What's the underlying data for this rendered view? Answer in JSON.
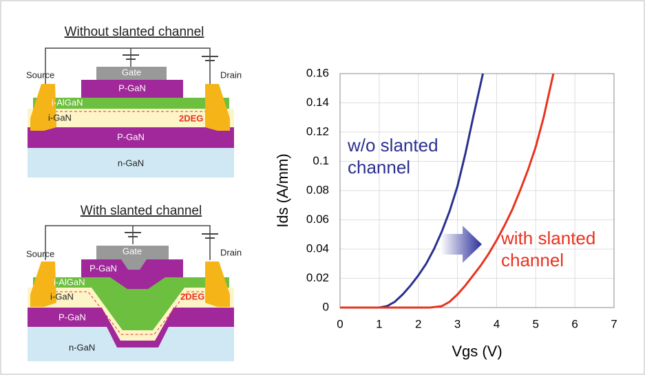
{
  "diagrams": [
    {
      "title": "Without slanted channel",
      "layers": [
        "Source",
        "Gate",
        "Drain",
        "P-GaN",
        "i-AlGaN",
        "i-GaN",
        "2DEG",
        "P-GaN",
        "n-GaN"
      ]
    },
    {
      "title": "With slanted channel",
      "layers": [
        "Source",
        "Gate",
        "Drain",
        "P-GaN",
        "i-AlGaN",
        "i-GaN",
        "2DEG",
        "P-GaN",
        "n-GaN"
      ]
    }
  ],
  "chart_data": {
    "type": "line",
    "x_label": "Vgs (V)",
    "y_label": "Ids (A/mm)",
    "xlim": [
      0,
      7
    ],
    "ylim": [
      0,
      0.16
    ],
    "xticks": [
      0,
      1,
      2,
      3,
      4,
      5,
      6,
      7
    ],
    "yticks": [
      0,
      0.02,
      0.04,
      0.06,
      0.08,
      0.1,
      0.12,
      0.14,
      0.16
    ],
    "grid": true,
    "series": [
      {
        "name": "w/o slanted channel",
        "color": "#2b2f8f",
        "x": [
          0,
          0.5,
          1.0,
          1.2,
          1.4,
          1.6,
          1.8,
          2.0,
          2.2,
          2.4,
          2.6,
          2.8,
          3.0,
          3.2,
          3.4,
          3.65
        ],
        "values": [
          0,
          0,
          0,
          0.001,
          0.004,
          0.009,
          0.015,
          0.022,
          0.03,
          0.04,
          0.052,
          0.066,
          0.083,
          0.105,
          0.13,
          0.16
        ]
      },
      {
        "name": "with slanted channel",
        "color": "#e8321e",
        "x": [
          0,
          1,
          2,
          2.3,
          2.6,
          2.8,
          3.0,
          3.2,
          3.4,
          3.6,
          3.8,
          4.0,
          4.2,
          4.4,
          4.6,
          4.8,
          5.0,
          5.2,
          5.45
        ],
        "values": [
          0,
          0,
          0,
          0,
          0.001,
          0.004,
          0.009,
          0.015,
          0.022,
          0.029,
          0.037,
          0.046,
          0.056,
          0.067,
          0.08,
          0.094,
          0.11,
          0.13,
          0.16
        ]
      }
    ]
  }
}
